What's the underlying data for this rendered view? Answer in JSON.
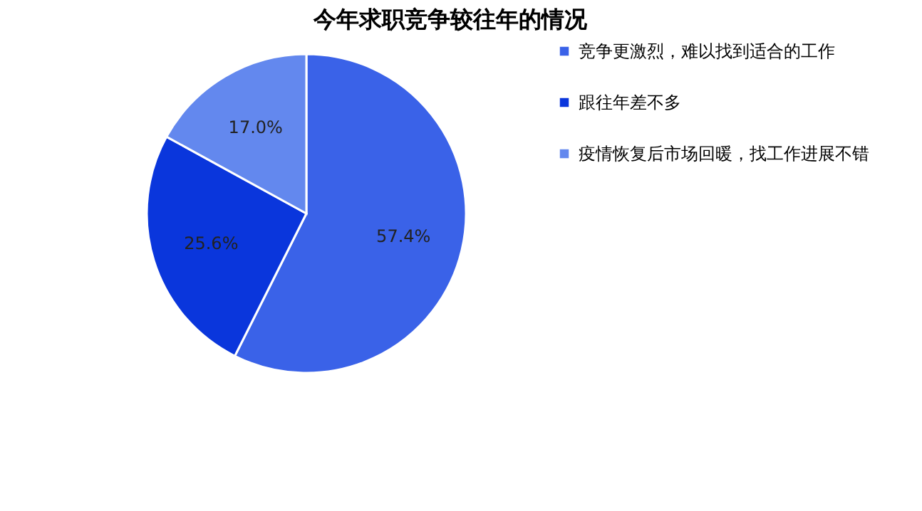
{
  "chart_data": {
    "type": "pie",
    "title": "今年求职竞争较往年的情况",
    "categories": [
      "竞争更激烈，难以找到适合的工作",
      "跟往年差不多",
      "疫情恢复后市场回暖，找工作进展不错"
    ],
    "values": [
      57.4,
      25.6,
      17.0
    ],
    "colors": [
      "#3a62e8",
      "#0a36dc",
      "#6388ee"
    ],
    "value_labels": [
      "57.4%",
      "25.6%",
      "17.0%"
    ],
    "legend": "right"
  }
}
